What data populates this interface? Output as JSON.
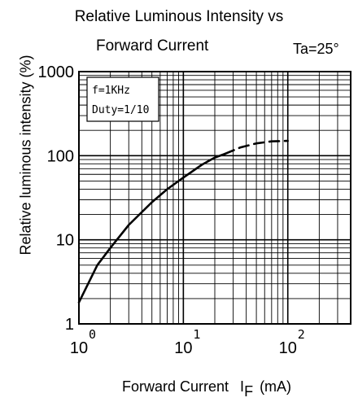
{
  "chart_data": {
    "type": "line",
    "title_line1": "Relative Luminous Intensity vs",
    "title_line2": "Forward Current",
    "condition": "Ta=25°",
    "ylabel": "Relative luminous intensity  (%)",
    "xlabel": "Forward Current",
    "xlabel_symbol": "I",
    "xlabel_subscript": "F",
    "xlabel_unit": "(mA)",
    "x_scale": "log",
    "y_scale": "log",
    "xlim": [
      1,
      400
    ],
    "ylim": [
      1,
      1000
    ],
    "grid": true,
    "annotation_lines": [
      "f=1KHz",
      "Duty=1/10"
    ],
    "y_tick_labels": [
      "1000",
      "100",
      "10",
      "1"
    ],
    "x_tick_labels": [
      {
        "base": "10",
        "exp": "0"
      },
      {
        "base": "10",
        "exp": "1"
      },
      {
        "base": "10",
        "exp": "2"
      }
    ],
    "series": [
      {
        "style": "solid",
        "x": [
          1,
          1.5,
          2,
          3,
          5,
          7,
          10,
          15,
          20,
          25
        ],
        "y": [
          1.8,
          5,
          8,
          15,
          28,
          40,
          55,
          78,
          95,
          105
        ]
      },
      {
        "style": "dashed",
        "x": [
          25,
          35,
          50,
          70,
          100
        ],
        "y": [
          105,
          125,
          140,
          148,
          150
        ]
      }
    ]
  }
}
